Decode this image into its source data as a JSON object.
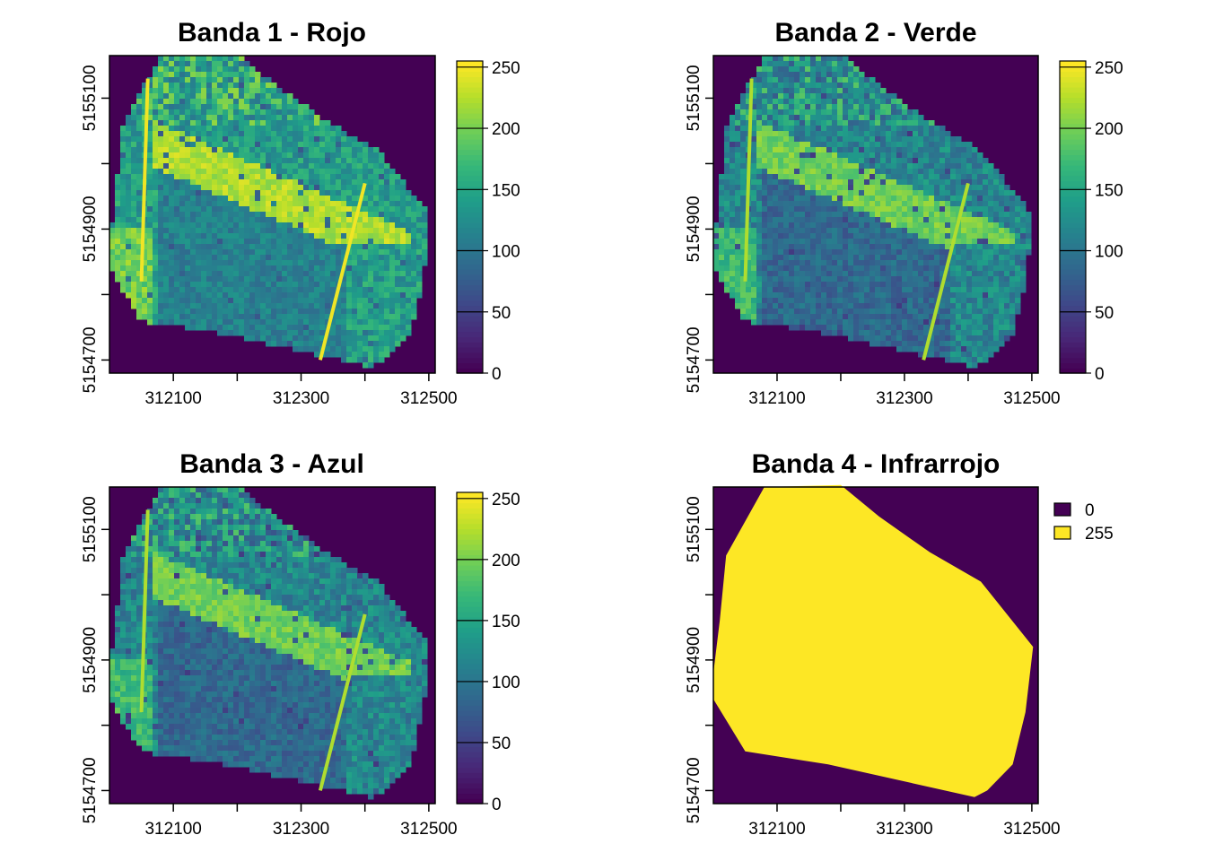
{
  "colors": {
    "viridis": [
      "#440154",
      "#482878",
      "#3e4a89",
      "#31688e",
      "#26828e",
      "#1f9e89",
      "#35b779",
      "#6ece58",
      "#b5de2b",
      "#fde725"
    ],
    "background": "#440154",
    "high": "#fde725"
  },
  "chart_data": [
    {
      "type": "heatmap",
      "title": "Banda 1 - Rojo",
      "x_ticks": [
        312100,
        312300,
        312500
      ],
      "y_ticks": [
        5154700,
        5154900,
        5155100
      ],
      "xlim": [
        312000,
        312510
      ],
      "ylim": [
        5154680,
        5155165
      ],
      "legend": {
        "type": "continuous",
        "ticks": [
          0,
          50,
          100,
          150,
          200,
          250
        ],
        "range": [
          0,
          255
        ],
        "placement": "right"
      },
      "value_range": [
        0,
        255
      ],
      "brightness": "bright"
    },
    {
      "type": "heatmap",
      "title": "Banda 2 - Verde",
      "x_ticks": [
        312100,
        312300,
        312500
      ],
      "y_ticks": [
        5154700,
        5154900,
        5155100
      ],
      "xlim": [
        312000,
        312510
      ],
      "ylim": [
        5154680,
        5155165
      ],
      "legend": {
        "type": "continuous",
        "ticks": [
          0,
          50,
          100,
          150,
          200,
          250
        ],
        "range": [
          0,
          255
        ],
        "placement": "right"
      },
      "value_range": [
        0,
        255
      ],
      "brightness": "medium"
    },
    {
      "type": "heatmap",
      "title": "Banda 3 - Azul",
      "x_ticks": [
        312100,
        312300,
        312500
      ],
      "y_ticks": [
        5154700,
        5154900,
        5155100
      ],
      "xlim": [
        312000,
        312510
      ],
      "ylim": [
        5154680,
        5155165
      ],
      "legend": {
        "type": "continuous",
        "ticks": [
          0,
          50,
          100,
          150,
          200,
          250
        ],
        "range": [
          0,
          255
        ],
        "placement": "right"
      },
      "value_range": [
        0,
        255
      ],
      "brightness": "medium"
    },
    {
      "type": "heatmap",
      "title": "Banda 4 - Infrarrojo",
      "x_ticks": [
        312100,
        312300,
        312500
      ],
      "y_ticks": [
        5154700,
        5154900,
        5155100
      ],
      "xlim": [
        312000,
        312510
      ],
      "ylim": [
        5154680,
        5155165
      ],
      "legend": {
        "type": "categorical",
        "placement": "right",
        "entries": [
          {
            "label": "0",
            "color": "#440154"
          },
          {
            "label": "255",
            "color": "#fde725"
          }
        ]
      },
      "categories": [
        "0",
        "255"
      ]
    }
  ]
}
